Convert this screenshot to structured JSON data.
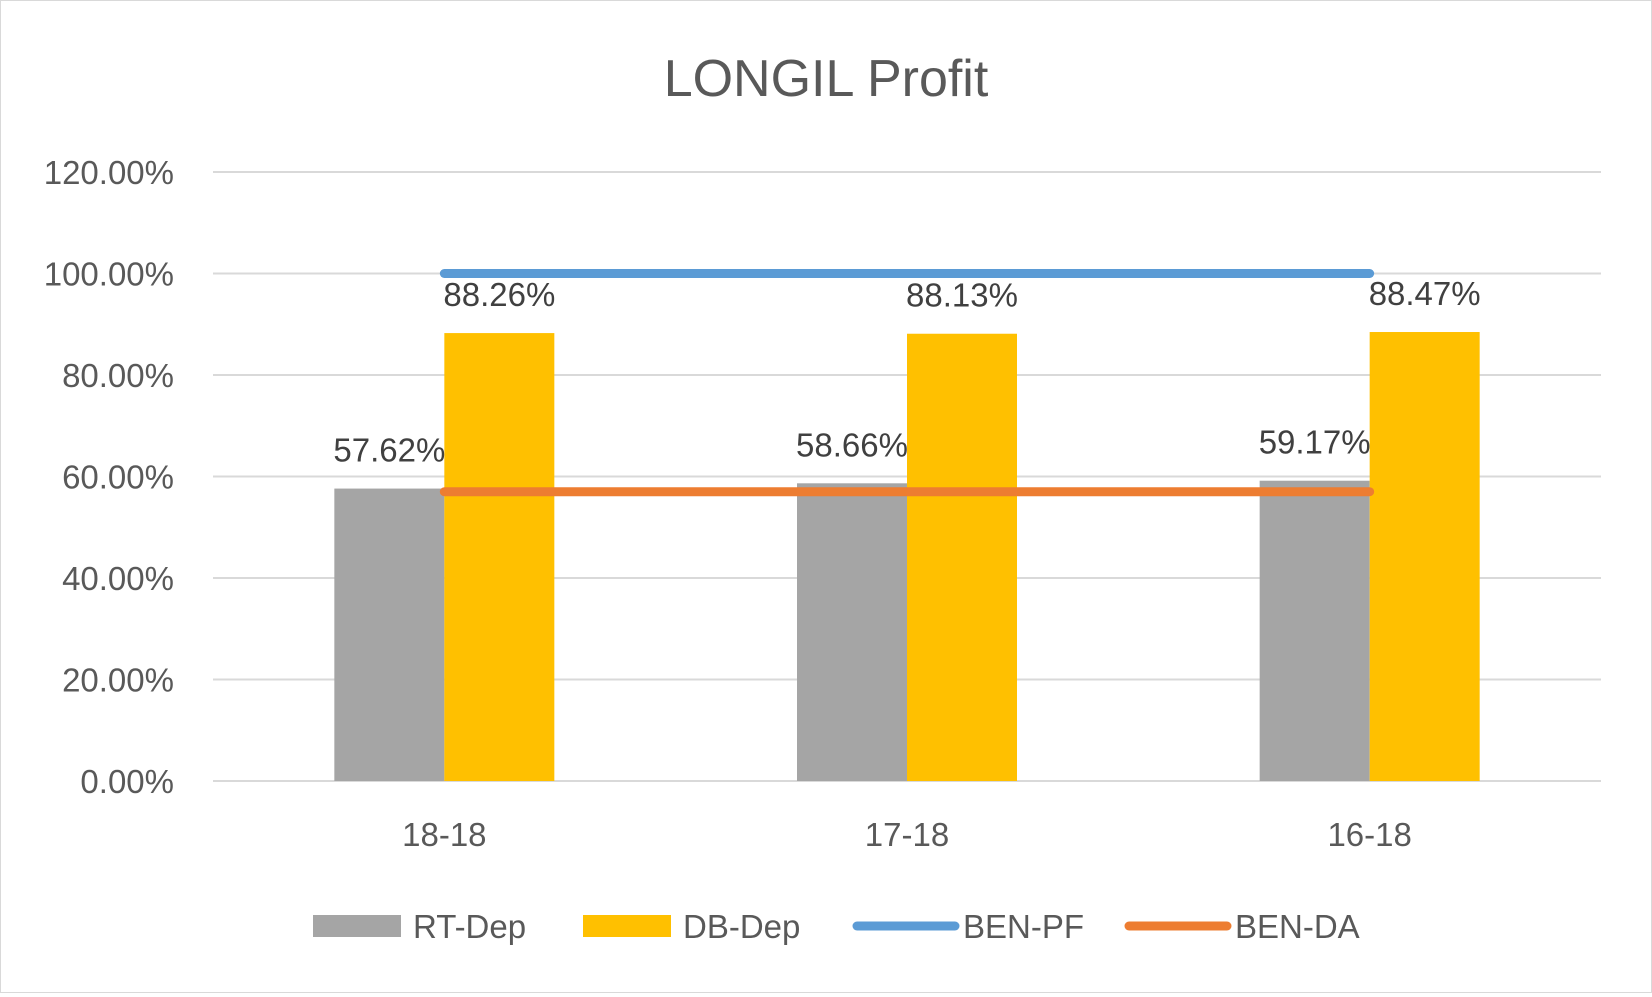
{
  "chart_data": {
    "type": "bar",
    "title": "LONGIL Profit",
    "categories": [
      "18-18",
      "17-18",
      "16-18"
    ],
    "ylim": [
      0,
      120
    ],
    "yticks": [
      0,
      20,
      40,
      60,
      80,
      100,
      120
    ],
    "ytick_labels": [
      "0.00%",
      "20.00%",
      "40.00%",
      "60.00%",
      "80.00%",
      "100.00%",
      "120.00%"
    ],
    "grid": true,
    "legend_position": "bottom",
    "series": [
      {
        "name": "RT-Dep",
        "kind": "bar",
        "color": "#a5a5a5",
        "values": [
          57.62,
          58.66,
          59.17
        ],
        "labels": [
          "57.62%",
          "58.66%",
          "59.17%"
        ]
      },
      {
        "name": "DB-Dep",
        "kind": "bar",
        "color": "#ffc000",
        "values": [
          88.26,
          88.13,
          88.47
        ],
        "labels": [
          "88.26%",
          "88.13%",
          "88.47%"
        ]
      },
      {
        "name": "BEN-PF",
        "kind": "line",
        "color": "#5b9bd5",
        "values": [
          100,
          100,
          100
        ]
      },
      {
        "name": "BEN-DA",
        "kind": "line",
        "color": "#ed7d31",
        "values": [
          57.0,
          57.0,
          57.0
        ]
      }
    ]
  }
}
